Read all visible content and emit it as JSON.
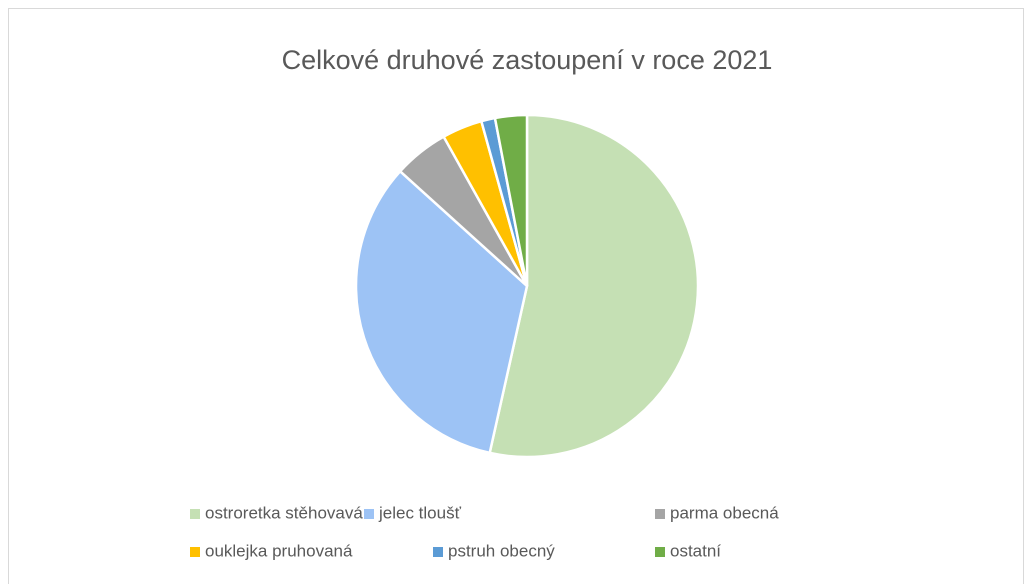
{
  "chart_data": {
    "type": "pie",
    "title": "Celkové druhové zastoupení v roce 2021",
    "categories": [
      "ostroretka stěhovavá",
      "jelec tloušť",
      "parma obecná",
      "ouklejka pruhovaná",
      "pstruh obecný",
      "ostatní"
    ],
    "values": [
      53.5,
      33.2,
      5.2,
      3.8,
      1.3,
      3.0
    ],
    "colors": [
      "#c5e0b4",
      "#9dc3f5",
      "#a5a5a5",
      "#ffc000",
      "#5b9bd5",
      "#70ad47"
    ],
    "legend": "bottom"
  }
}
